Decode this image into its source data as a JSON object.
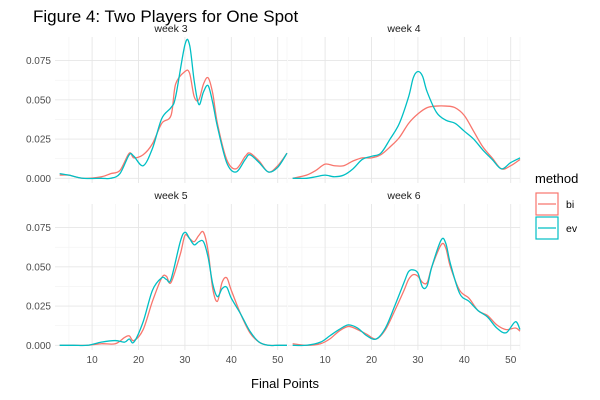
{
  "chart_data": {
    "type": "line",
    "title": "Figure 4: Two Players for One Spot",
    "xlabel": "Final Points",
    "ylabel": "",
    "xlim": [
      2,
      52
    ],
    "ylim": [
      -0.003,
      0.09
    ],
    "x_ticks": [
      10,
      20,
      30,
      40,
      50
    ],
    "y_ticks": [
      0.0,
      0.025,
      0.05,
      0.075
    ],
    "y_tick_labels": [
      "0.000",
      "0.025",
      "0.050",
      "0.075"
    ],
    "legend": {
      "title": "method",
      "position": "right",
      "entries": [
        {
          "label": "bi",
          "color": "#F8766D"
        },
        {
          "label": "ev",
          "color": "#00BFC4"
        }
      ]
    },
    "colors": {
      "bi": "#F8766D",
      "ev": "#00BFC4"
    },
    "grid": true,
    "panels": [
      {
        "label": "week 3",
        "series": [
          {
            "name": "bi",
            "x": [
              3,
              5,
              8,
              12,
              14,
              16,
              18,
              19,
              21,
              23,
              25,
              27,
              28,
              30,
              31,
              32,
              33,
              34,
              35,
              36,
              37,
              39,
              41,
              43,
              44,
              46,
              48,
              50,
              52
            ],
            "y": [
              0.002,
              0.002,
              0.0,
              0.001,
              0.003,
              0.005,
              0.016,
              0.013,
              0.015,
              0.022,
              0.035,
              0.04,
              0.06,
              0.068,
              0.067,
              0.052,
              0.05,
              0.06,
              0.064,
              0.054,
              0.035,
              0.012,
              0.006,
              0.014,
              0.016,
              0.011,
              0.004,
              0.008,
              0.016
            ]
          },
          {
            "name": "ev",
            "x": [
              3,
              5,
              8,
              12,
              14,
              16,
              18,
              19,
              21,
              23,
              25,
              27,
              28,
              30,
              31,
              32,
              33,
              34,
              35,
              36,
              37,
              39,
              41,
              43,
              44,
              46,
              48,
              50,
              52
            ],
            "y": [
              0.003,
              0.002,
              0.0,
              0.0,
              0.0,
              0.003,
              0.015,
              0.014,
              0.008,
              0.019,
              0.038,
              0.045,
              0.052,
              0.085,
              0.085,
              0.062,
              0.047,
              0.055,
              0.059,
              0.048,
              0.033,
              0.01,
              0.004,
              0.012,
              0.015,
              0.01,
              0.004,
              0.007,
              0.016
            ]
          }
        ]
      },
      {
        "label": "week 4",
        "series": [
          {
            "name": "bi",
            "x": [
              3,
              6,
              8,
              10,
              12,
              14,
              16,
              18,
              20,
              22,
              24,
              26,
              28,
              30,
              32,
              34,
              36,
              38,
              40,
              42,
              44,
              46,
              48,
              50,
              52
            ],
            "y": [
              0.0,
              0.002,
              0.005,
              0.009,
              0.008,
              0.008,
              0.011,
              0.013,
              0.013,
              0.015,
              0.02,
              0.026,
              0.035,
              0.041,
              0.045,
              0.046,
              0.046,
              0.045,
              0.04,
              0.03,
              0.02,
              0.013,
              0.006,
              0.008,
              0.012
            ]
          },
          {
            "name": "ev",
            "x": [
              3,
              6,
              8,
              10,
              12,
              14,
              16,
              18,
              20,
              22,
              24,
              26,
              28,
              29,
              30,
              31,
              32,
              34,
              36,
              38,
              40,
              42,
              44,
              46,
              48,
              50,
              52
            ],
            "y": [
              0.0,
              0.0,
              0.001,
              0.002,
              0.001,
              0.002,
              0.006,
              0.012,
              0.014,
              0.016,
              0.025,
              0.035,
              0.052,
              0.064,
              0.068,
              0.065,
              0.055,
              0.042,
              0.037,
              0.035,
              0.03,
              0.025,
              0.018,
              0.012,
              0.006,
              0.01,
              0.013
            ]
          }
        ]
      },
      {
        "label": "week 5",
        "series": [
          {
            "name": "bi",
            "x": [
              3,
              6,
              9,
              12,
              15,
              17,
              18,
              19,
              21,
              23,
              25,
              26,
              27,
              29,
              30,
              31,
              32,
              33,
              34,
              35,
              36,
              37,
              38,
              39,
              40,
              42,
              44,
              46,
              48,
              50,
              52
            ],
            "y": [
              0.0,
              0.0,
              0.0,
              0.001,
              0.001,
              0.005,
              0.006,
              0.003,
              0.01,
              0.028,
              0.043,
              0.044,
              0.04,
              0.058,
              0.07,
              0.068,
              0.066,
              0.07,
              0.072,
              0.06,
              0.036,
              0.028,
              0.04,
              0.043,
              0.035,
              0.02,
              0.008,
              0.002,
              0.0,
              0.0,
              0.0
            ]
          },
          {
            "name": "ev",
            "x": [
              3,
              6,
              9,
              12,
              15,
              17,
              18,
              19,
              21,
              23,
              25,
              26,
              27,
              29,
              30,
              31,
              32,
              33,
              34,
              35,
              36,
              37,
              38,
              39,
              40,
              42,
              44,
              46,
              48,
              50,
              52
            ],
            "y": [
              0.0,
              0.0,
              0.0,
              0.002,
              0.003,
              0.002,
              0.004,
              0.002,
              0.015,
              0.035,
              0.043,
              0.042,
              0.042,
              0.066,
              0.072,
              0.068,
              0.064,
              0.066,
              0.066,
              0.056,
              0.039,
              0.031,
              0.036,
              0.037,
              0.03,
              0.02,
              0.009,
              0.002,
              0.0,
              0.0,
              0.0
            ]
          }
        ]
      },
      {
        "label": "week 6",
        "series": [
          {
            "name": "bi",
            "x": [
              3,
              6,
              9,
              11,
              13,
              15,
              17,
              19,
              21,
              23,
              25,
              27,
              28,
              29,
              30,
              31,
              32,
              33,
              35,
              36,
              37,
              39,
              41,
              43,
              45,
              47,
              49,
              51,
              52
            ],
            "y": [
              0.001,
              0.0,
              0.001,
              0.004,
              0.009,
              0.012,
              0.01,
              0.007,
              0.004,
              0.01,
              0.022,
              0.035,
              0.042,
              0.045,
              0.044,
              0.04,
              0.04,
              0.05,
              0.064,
              0.062,
              0.05,
              0.035,
              0.03,
              0.022,
              0.019,
              0.013,
              0.01,
              0.011,
              0.009
            ]
          },
          {
            "name": "ev",
            "x": [
              3,
              6,
              9,
              11,
              13,
              15,
              17,
              19,
              21,
              23,
              25,
              27,
              28,
              29,
              30,
              31,
              32,
              33,
              35,
              36,
              37,
              39,
              41,
              43,
              45,
              47,
              49,
              51,
              52
            ],
            "y": [
              0.0,
              0.0,
              0.002,
              0.006,
              0.01,
              0.013,
              0.011,
              0.006,
              0.004,
              0.011,
              0.025,
              0.04,
              0.047,
              0.048,
              0.046,
              0.037,
              0.038,
              0.05,
              0.067,
              0.065,
              0.052,
              0.033,
              0.028,
              0.022,
              0.018,
              0.011,
              0.008,
              0.015,
              0.01
            ]
          }
        ]
      }
    ]
  }
}
